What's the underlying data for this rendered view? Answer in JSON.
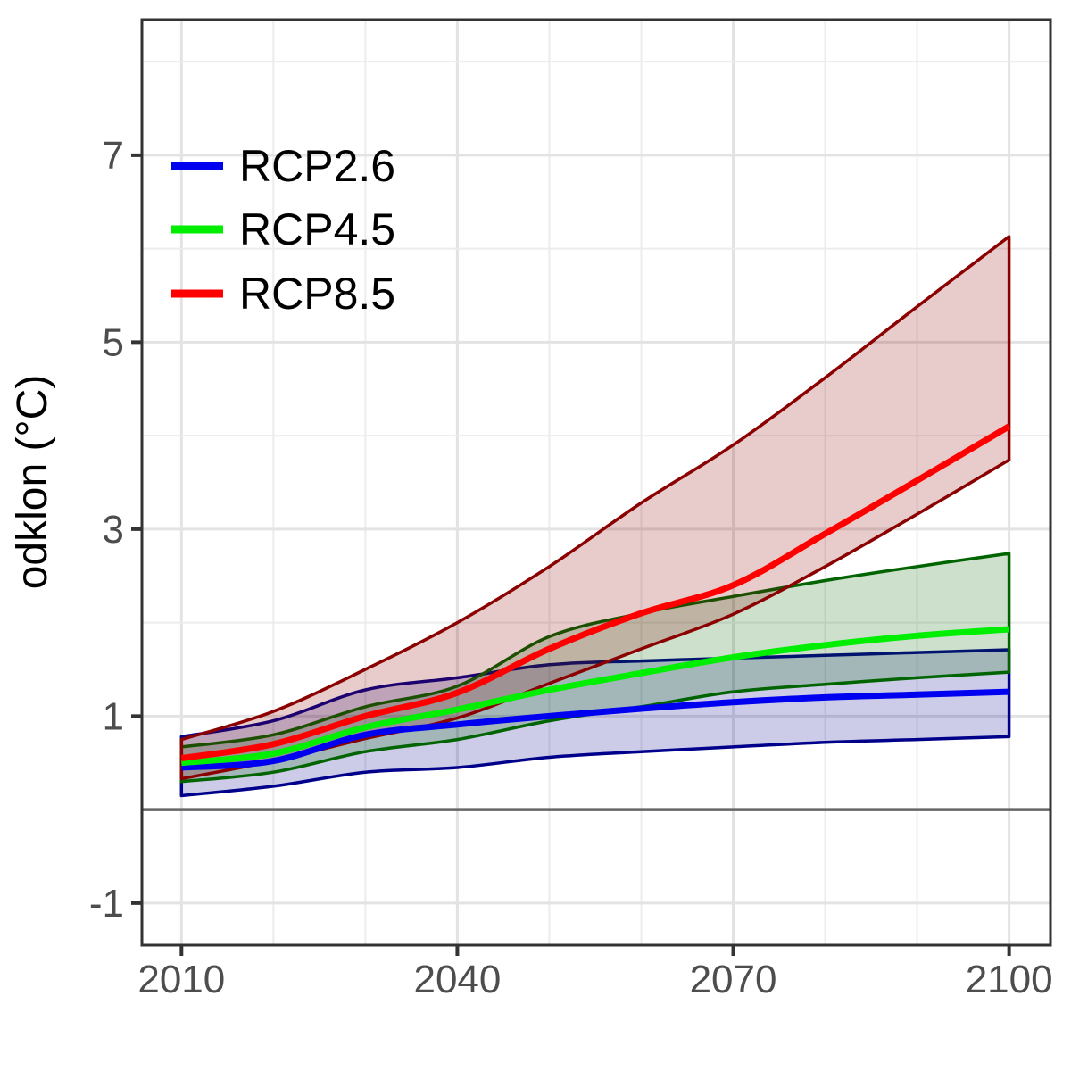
{
  "chart_data": {
    "type": "line",
    "title": "",
    "xlabel": "",
    "ylabel": "odklon (°C)",
    "x": [
      2010,
      2020,
      2030,
      2040,
      2050,
      2060,
      2070,
      2080,
      2090,
      2100
    ],
    "x_tick_labels": [
      "2010",
      "2040",
      "2070",
      "2100"
    ],
    "x_ticks": [
      2010,
      2040,
      2070,
      2100
    ],
    "x_gridlines_every_years": 10,
    "y_tick_labels": [
      "7",
      "5",
      "3",
      "1",
      "-1"
    ],
    "y_ticks": [
      7,
      5,
      3,
      1,
      -1
    ],
    "y_minor_gridlines": [
      8,
      6,
      4,
      2,
      0
    ],
    "xlim": [
      2005.7,
      2104.5
    ],
    "ylim": [
      -1.45,
      8.45
    ],
    "zero_reference_line_y": 0,
    "grid": "on",
    "legend_position": "inside-top-left",
    "series": [
      {
        "name": "RCP2.6",
        "line_color": "#0000F0",
        "band_edge_color": "#00008B",
        "band_fill_color": "rgba(0,0,139,0.2)",
        "center": [
          0.45,
          0.52,
          0.8,
          0.91,
          1.0,
          1.08,
          1.15,
          1.2,
          1.23,
          1.26
        ],
        "upper": [
          0.78,
          0.95,
          1.28,
          1.41,
          1.55,
          1.59,
          1.62,
          1.65,
          1.68,
          1.71
        ],
        "lower": [
          0.15,
          0.25,
          0.4,
          0.45,
          0.56,
          0.62,
          0.67,
          0.72,
          0.75,
          0.78
        ]
      },
      {
        "name": "RCP4.5",
        "line_color": "#00EE00",
        "band_edge_color": "#006400",
        "band_fill_color": "rgba(0,100,0,0.2)",
        "center": [
          0.5,
          0.6,
          0.88,
          1.07,
          1.28,
          1.46,
          1.63,
          1.76,
          1.86,
          1.93
        ],
        "upper": [
          0.67,
          0.8,
          1.1,
          1.32,
          1.85,
          2.1,
          2.28,
          2.45,
          2.6,
          2.74
        ],
        "lower": [
          0.3,
          0.4,
          0.62,
          0.75,
          0.95,
          1.1,
          1.26,
          1.34,
          1.41,
          1.47
        ]
      },
      {
        "name": "RCP8.5",
        "line_color": "#FF0000",
        "band_edge_color": "#8B0000",
        "band_fill_color": "rgba(139,0,0,0.2)",
        "center": [
          0.55,
          0.7,
          1.0,
          1.25,
          1.72,
          2.1,
          2.4,
          2.95,
          3.52,
          4.1
        ],
        "upper": [
          0.75,
          1.05,
          1.5,
          2.0,
          2.6,
          3.28,
          3.9,
          4.62,
          5.38,
          6.13
        ],
        "lower": [
          0.33,
          0.52,
          0.76,
          0.98,
          1.35,
          1.72,
          2.09,
          2.6,
          3.16,
          3.74
        ]
      }
    ],
    "colors": {
      "panel_border": "#333333",
      "tick_mark": "#333333",
      "tick_label": "#4D4D4D",
      "axis_title": "#000000",
      "legend_text": "#000000",
      "grid_major": "#E3E3E3",
      "grid_minor": "#ECECEC",
      "zero_line": "#666666",
      "background": "#FFFFFF"
    }
  }
}
